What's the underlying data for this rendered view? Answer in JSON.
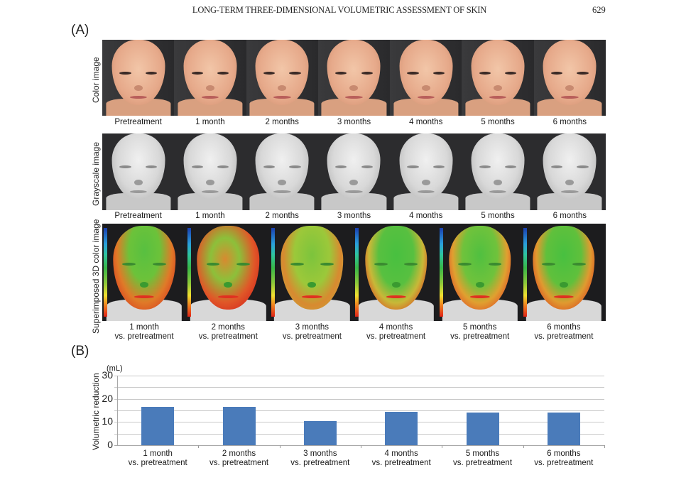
{
  "header": {
    "running_title": "LONG-TERM THREE-DIMENSIONAL VOLUMETRIC ASSESSMENT OF SKIN",
    "page_number": "629"
  },
  "panel_a": {
    "label": "(A)",
    "rows": [
      {
        "row_label": "Color image",
        "type": "color",
        "captions": [
          "Pretreatment",
          "1 month",
          "2 months",
          "3 months",
          "4 months",
          "5 months",
          "6 months"
        ]
      },
      {
        "row_label": "Grayscale image",
        "type": "grayscale",
        "captions": [
          "Pretreatment",
          "1 month",
          "2 months",
          "3 months",
          "4 months",
          "5 months",
          "6 months"
        ]
      },
      {
        "row_label": "Superimposed 3D color image",
        "type": "heatmap",
        "captions": [
          [
            "1 month",
            "vs. pretreatment"
          ],
          [
            "2 months",
            "vs. pretreatment"
          ],
          [
            "3 months",
            "vs. pretreatment"
          ],
          [
            "4 months",
            "vs. pretreatment"
          ],
          [
            "5 months",
            "vs. pretreatment"
          ],
          [
            "6 months",
            "vs. pretreatment"
          ]
        ]
      }
    ],
    "colorbar_colors": [
      "#1a3fb0",
      "#2a9fdc",
      "#38b848",
      "#f0e030",
      "#f08a20",
      "#e02418"
    ]
  },
  "panel_b": {
    "label": "(B)",
    "unit_label": "(mL)",
    "bar_color": "#4a7bba",
    "gridline_color": "#c8c8c8"
  },
  "chart_data": {
    "type": "bar",
    "title": "",
    "xlabel": "",
    "ylabel": "Volumetric reduction",
    "y_unit": "mL",
    "ylim": [
      0,
      30
    ],
    "yticks": [
      0,
      10,
      20,
      30
    ],
    "gridlines_every": 5,
    "grid": true,
    "legend": "none",
    "categories": [
      "1 month vs. pretreatment",
      "2 months vs. pretreatment",
      "3 months vs. pretreatment",
      "4 months vs. pretreatment",
      "5 months vs. pretreatment",
      "6 months vs. pretreatment"
    ],
    "category_lines": [
      [
        "1 month",
        "vs. pretreatment"
      ],
      [
        "2 months",
        "vs. pretreatment"
      ],
      [
        "3 months",
        "vs. pretreatment"
      ],
      [
        "4 months",
        "vs. pretreatment"
      ],
      [
        "5 months",
        "vs. pretreatment"
      ],
      [
        "6 months",
        "vs. pretreatment"
      ]
    ],
    "values": [
      16.4,
      16.4,
      10.5,
      14.3,
      14.1,
      14.1
    ]
  }
}
